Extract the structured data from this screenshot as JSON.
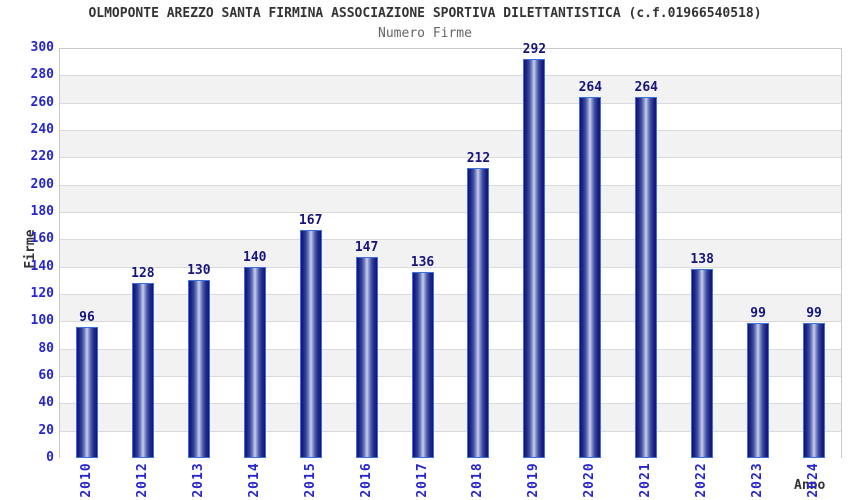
{
  "header": {
    "title": "OLMOPONTE AREZZO SANTA FIRMINA ASSOCIAZIONE SPORTIVA DILETTANTISTICA (c.f.01966540518)",
    "subtitle": "Numero Firme"
  },
  "chart_data": {
    "type": "bar",
    "title": "OLMOPONTE AREZZO SANTA FIRMINA ASSOCIAZIONE SPORTIVA DILETTANTISTICA (c.f.01966540518)",
    "subtitle": "Numero Firme",
    "xlabel": "Anno",
    "ylabel": "Firme",
    "categories": [
      "2010",
      "2012",
      "2013",
      "2014",
      "2015",
      "2016",
      "2017",
      "2018",
      "2019",
      "2020",
      "2021",
      "2022",
      "2023",
      "2024"
    ],
    "values": [
      96,
      128,
      130,
      140,
      167,
      147,
      136,
      212,
      292,
      264,
      264,
      138,
      99,
      99
    ],
    "ylim": [
      0,
      300
    ],
    "ytick_step": 20,
    "grid": true,
    "legend": false,
    "band_striping": "alternating horizontal white/gray, white at top",
    "bar_style": "vertical cylinder gradient, dark navy edges, light center",
    "colors": {
      "tick_label": "#2626cc",
      "year_label": "#2626cc",
      "value_label": "#15157d",
      "bar_border": "#3f6fd8",
      "bar_dark": "#10127a",
      "bar_mid2": "#3a499f",
      "bar_mid": "#7784c2",
      "bar_light": "#c9d0ea",
      "band_alt": "#f2f2f2",
      "band_main": "#ffffff",
      "grid_line": "#dadada",
      "plot_border": "#c9c9c9",
      "title_color": "#333333",
      "subtitle_color": "#666666",
      "axis_title_color": "#333333"
    }
  }
}
